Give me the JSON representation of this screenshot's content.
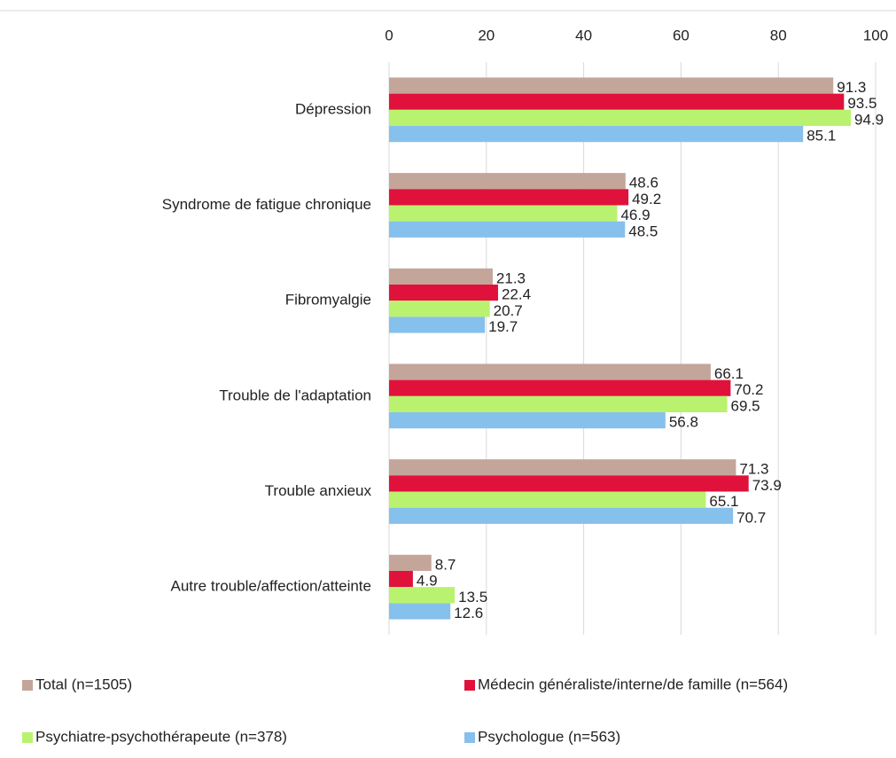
{
  "chart_data": {
    "type": "bar",
    "orientation": "horizontal",
    "categories": [
      "Dépression",
      "Syndrome de fatigue chronique",
      "Fibromyalgie",
      "Trouble de l'adaptation",
      "Trouble anxieux",
      "Autre trouble/affection/atteinte"
    ],
    "series": [
      {
        "name": "Total (n=1505)",
        "color": "#c4a59a",
        "values": [
          91.3,
          48.6,
          21.3,
          66.1,
          71.3,
          8.7
        ]
      },
      {
        "name": "Médecin généraliste/interne/de famille (n=564)",
        "color": "#e0123c",
        "values": [
          93.5,
          49.2,
          22.4,
          70.2,
          73.9,
          4.9
        ]
      },
      {
        "name": "Psychiatre-psychothérapeute (n=378)",
        "color": "#b9f26e",
        "values": [
          94.9,
          46.9,
          20.7,
          69.5,
          65.1,
          13.5
        ]
      },
      {
        "name": "Psychologue (n=563)",
        "color": "#86c0ec",
        "values": [
          85.1,
          48.5,
          19.7,
          56.8,
          70.7,
          12.6
        ]
      }
    ],
    "xlim": [
      0,
      100
    ],
    "xticks": [
      0,
      20,
      40,
      60,
      80,
      100
    ],
    "grid": true,
    "legend": "bottom"
  }
}
